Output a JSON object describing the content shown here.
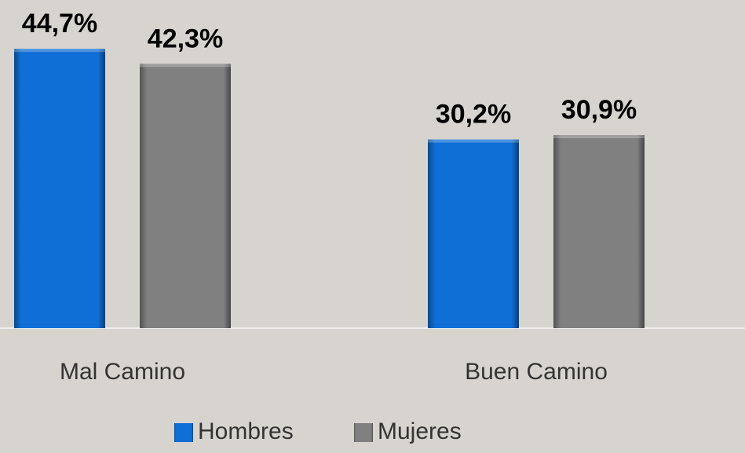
{
  "chart_data": {
    "type": "bar",
    "categories": [
      "Mal Camino",
      "Buen Camino"
    ],
    "series": [
      {
        "name": "Hombres",
        "color": "#0f6fd6",
        "values": [
          44.7,
          30.2
        ],
        "value_labels": [
          "44,7%",
          "30,2%"
        ]
      },
      {
        "name": "Mujeres",
        "color": "#808080",
        "values": [
          42.3,
          30.9
        ],
        "value_labels": [
          "42,3%",
          "30,9%"
        ]
      }
    ],
    "ylim": [
      0,
      50
    ],
    "legend": "bottom"
  }
}
